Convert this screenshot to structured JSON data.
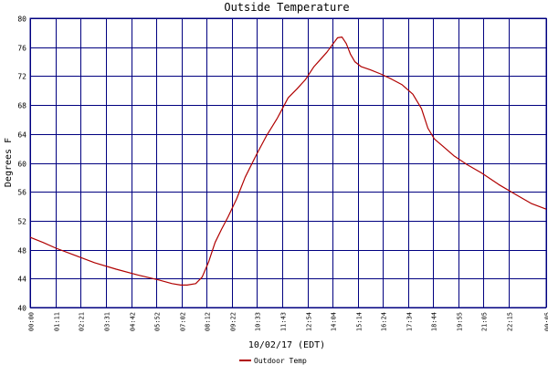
{
  "chart_data": {
    "type": "line",
    "title": "Outside Temperature",
    "ylabel": "Degrees F",
    "xlabel": "10/02/17 (EDT)",
    "ylim": [
      40,
      80
    ],
    "xlim": [
      0,
      24
    ],
    "y_ticks": [
      40,
      44,
      48,
      52,
      56,
      60,
      64,
      68,
      72,
      76,
      80
    ],
    "y_tick_labels": [
      "40",
      "44",
      "48",
      "52",
      "56",
      "60",
      "64",
      "68",
      "72",
      "76",
      "80"
    ],
    "x_ticks": [
      0,
      1.1833,
      2.35,
      3.5167,
      4.7,
      5.8667,
      7.0333,
      8.2,
      9.3667,
      10.55,
      11.7167,
      12.9,
      14.0667,
      15.2333,
      16.4,
      17.5667,
      18.7333,
      19.9167,
      21.0833,
      22.25,
      24
    ],
    "x_tick_labels": [
      "00:00",
      "01:11",
      "02:21",
      "03:31",
      "04:42",
      "05:52",
      "07:02",
      "08:12",
      "09:22",
      "10:33",
      "11:43",
      "12:54",
      "14:04",
      "15:14",
      "16:24",
      "17:34",
      "18:44",
      "19:55",
      "21:05",
      "22:15",
      "00:05"
    ],
    "grid": true,
    "colors": {
      "grid": "#000080",
      "series": "#b00000",
      "axis_text": "#000000",
      "title": "#000080"
    },
    "series": [
      {
        "name": "Outdoor Temp",
        "x": [
          0,
          0.6,
          1.2,
          2.0,
          3.0,
          4.0,
          5.0,
          6.0,
          6.6,
          7.0,
          7.3,
          7.7,
          8.0,
          8.3,
          8.6,
          8.9,
          9.2,
          9.6,
          10.0,
          10.5,
          11.0,
          11.5,
          12.0,
          12.4,
          12.8,
          13.2,
          13.5,
          13.8,
          14.1,
          14.3,
          14.5,
          14.7,
          14.9,
          15.1,
          15.4,
          15.8,
          16.3,
          16.8,
          17.3,
          17.8,
          18.2,
          18.5,
          18.8,
          19.2,
          19.7,
          20.3,
          21.0,
          21.8,
          22.6,
          23.3,
          24.0
        ],
        "values": [
          49.7,
          49.0,
          48.2,
          47.3,
          46.2,
          45.3,
          44.5,
          43.8,
          43.3,
          43.1,
          43.1,
          43.3,
          44.2,
          46.3,
          49.0,
          50.8,
          52.5,
          55.0,
          58.0,
          61.0,
          63.8,
          66.2,
          69.0,
          70.2,
          71.5,
          73.3,
          74.3,
          75.3,
          76.5,
          77.3,
          77.4,
          76.5,
          75.0,
          74.0,
          73.3,
          72.9,
          72.3,
          71.6,
          70.8,
          69.5,
          67.5,
          64.8,
          63.3,
          62.3,
          61.0,
          59.8,
          58.6,
          57.0,
          55.6,
          54.4,
          53.6
        ]
      }
    ],
    "legend": {
      "position": "bottom-center",
      "entries": [
        "Outdoor Temp"
      ]
    }
  }
}
